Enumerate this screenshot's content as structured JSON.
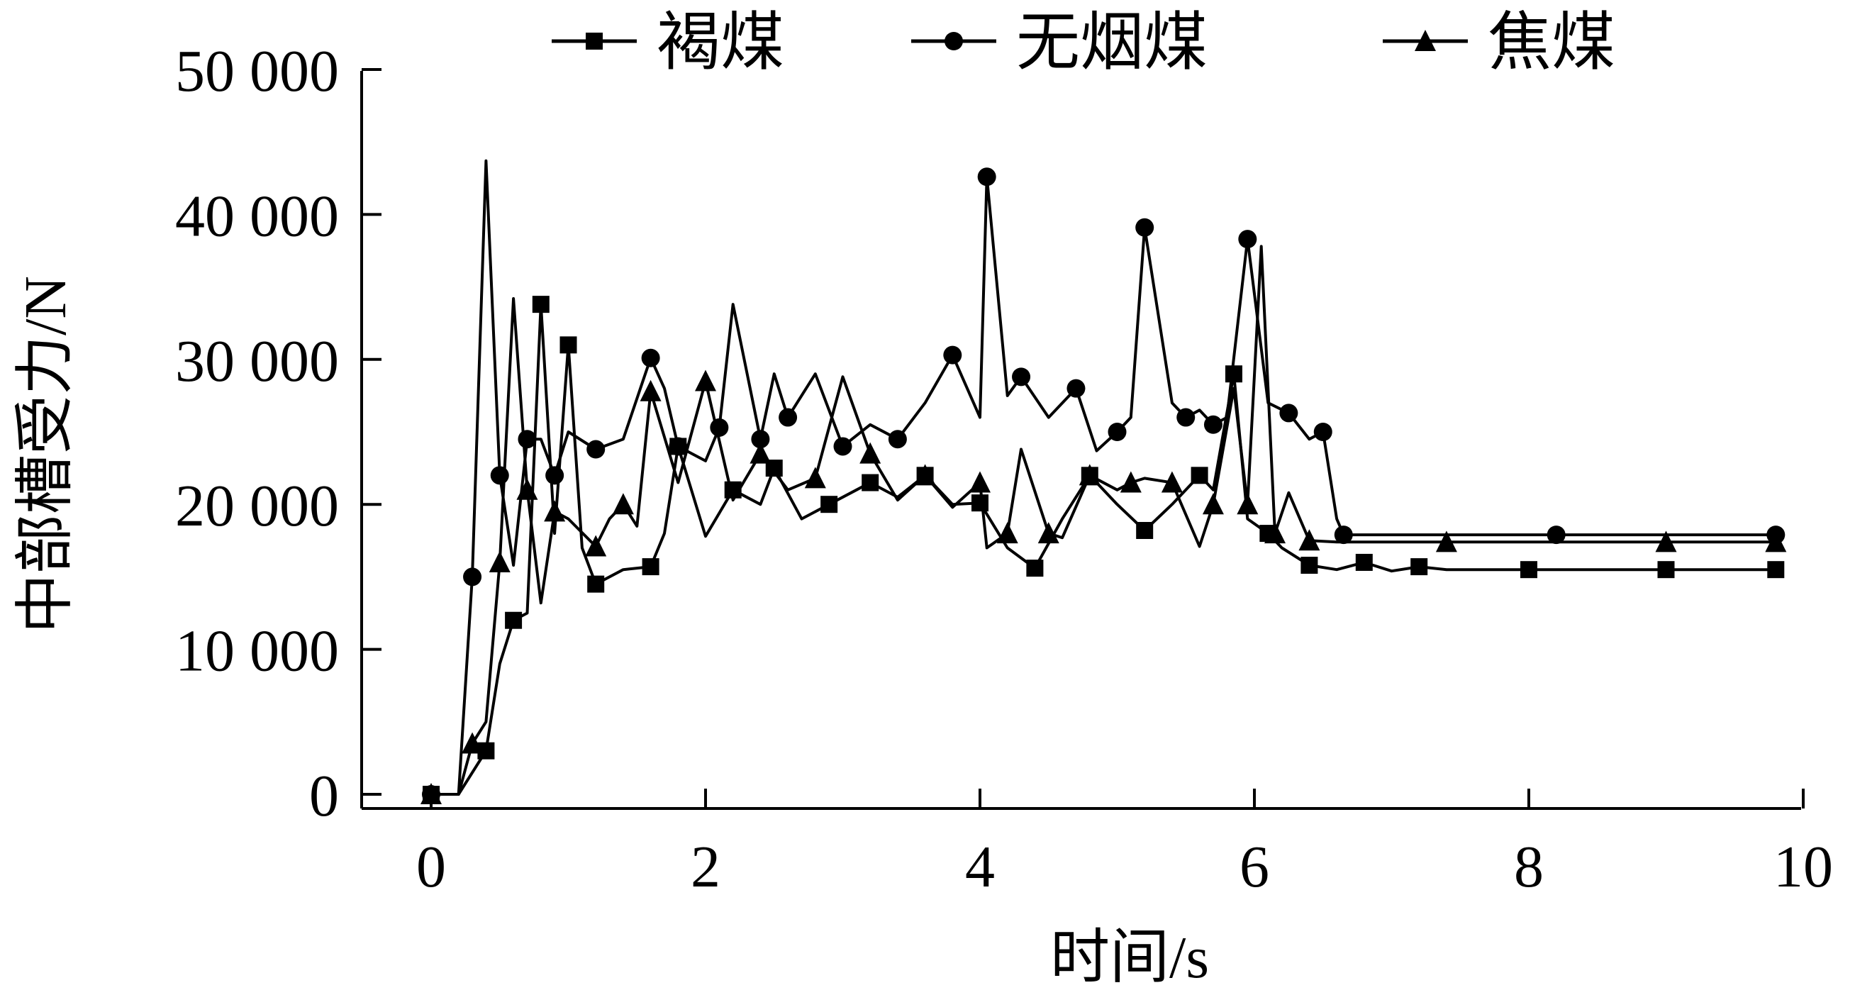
{
  "chart_data": {
    "type": "line",
    "xlabel": "时间/s",
    "ylabel": "中部槽受力/N",
    "xlim": [
      0,
      10
    ],
    "ylim": [
      0,
      50000
    ],
    "x_ticks": [
      0,
      2,
      4,
      6,
      8,
      10
    ],
    "y_ticks": [
      0,
      10000,
      20000,
      30000,
      40000,
      50000
    ],
    "x_tick_labels": [
      "0",
      "2",
      "4",
      "6",
      "8",
      "10"
    ],
    "y_tick_labels": [
      "0",
      "10 000",
      "20 000",
      "30 000",
      "40 000",
      "50 000"
    ],
    "legend_position": "top",
    "grid": false,
    "series": [
      {
        "name": "褐煤",
        "marker": "square",
        "points": [
          [
            0,
            0
          ],
          [
            0.2,
            0
          ],
          [
            0.4,
            3000
          ],
          [
            0.5,
            9000
          ],
          [
            0.6,
            12000
          ],
          [
            0.7,
            12500
          ],
          [
            0.8,
            33800
          ],
          [
            0.9,
            18000
          ],
          [
            1.0,
            31000
          ],
          [
            1.1,
            17000
          ],
          [
            1.2,
            14500
          ],
          [
            1.4,
            15500
          ],
          [
            1.6,
            15700
          ],
          [
            1.7,
            18000
          ],
          [
            1.8,
            24000
          ],
          [
            2.0,
            17800
          ],
          [
            2.2,
            21000
          ],
          [
            2.4,
            20000
          ],
          [
            2.5,
            22500
          ],
          [
            2.7,
            19000
          ],
          [
            2.9,
            20000
          ],
          [
            3.1,
            21000
          ],
          [
            3.2,
            21500
          ],
          [
            3.4,
            20500
          ],
          [
            3.6,
            22000
          ],
          [
            3.8,
            20000
          ],
          [
            4.0,
            20100
          ],
          [
            4.2,
            17000
          ],
          [
            4.4,
            15600
          ],
          [
            4.6,
            19000
          ],
          [
            4.8,
            22000
          ],
          [
            5.0,
            20000
          ],
          [
            5.2,
            18200
          ],
          [
            5.4,
            20000
          ],
          [
            5.6,
            22000
          ],
          [
            5.7,
            21000
          ],
          [
            5.85,
            29000
          ],
          [
            5.95,
            19000
          ],
          [
            6.1,
            18000
          ],
          [
            6.2,
            17000
          ],
          [
            6.4,
            15800
          ],
          [
            6.6,
            15500
          ],
          [
            6.8,
            16000
          ],
          [
            7.0,
            15400
          ],
          [
            7.2,
            15700
          ],
          [
            7.4,
            15500
          ],
          [
            8.0,
            15500
          ],
          [
            8.2,
            15500
          ],
          [
            9.0,
            15500
          ],
          [
            9.8,
            15500
          ]
        ]
      },
      {
        "name": "无烟煤",
        "marker": "circle",
        "points": [
          [
            0,
            0
          ],
          [
            0.2,
            0
          ],
          [
            0.3,
            15000
          ],
          [
            0.4,
            43700
          ],
          [
            0.5,
            22000
          ],
          [
            0.6,
            15800
          ],
          [
            0.7,
            24500
          ],
          [
            0.8,
            24500
          ],
          [
            0.9,
            22000
          ],
          [
            1.0,
            25000
          ],
          [
            1.2,
            23800
          ],
          [
            1.4,
            24500
          ],
          [
            1.6,
            30100
          ],
          [
            1.7,
            28000
          ],
          [
            1.8,
            24000
          ],
          [
            2.0,
            23000
          ],
          [
            2.1,
            25300
          ],
          [
            2.2,
            33800
          ],
          [
            2.4,
            24500
          ],
          [
            2.5,
            29000
          ],
          [
            2.6,
            26000
          ],
          [
            2.8,
            29000
          ],
          [
            3.0,
            24000
          ],
          [
            3.2,
            25500
          ],
          [
            3.4,
            24500
          ],
          [
            3.6,
            27000
          ],
          [
            3.8,
            30300
          ],
          [
            4.0,
            26000
          ],
          [
            4.05,
            42600
          ],
          [
            4.2,
            27500
          ],
          [
            4.3,
            28800
          ],
          [
            4.5,
            26000
          ],
          [
            4.7,
            28000
          ],
          [
            4.85,
            23700
          ],
          [
            5.0,
            25000
          ],
          [
            5.1,
            26000
          ],
          [
            5.2,
            39100
          ],
          [
            5.4,
            27000
          ],
          [
            5.5,
            26000
          ],
          [
            5.6,
            26500
          ],
          [
            5.7,
            25500
          ],
          [
            5.8,
            26000
          ],
          [
            5.95,
            38300
          ],
          [
            6.1,
            27000
          ],
          [
            6.25,
            26300
          ],
          [
            6.4,
            24500
          ],
          [
            6.5,
            25000
          ],
          [
            6.6,
            19000
          ],
          [
            6.65,
            17900
          ],
          [
            7.4,
            17900
          ],
          [
            8.2,
            17900
          ],
          [
            9.0,
            17900
          ],
          [
            9.8,
            17900
          ]
        ]
      },
      {
        "name": "焦煤",
        "marker": "triangle",
        "points": [
          [
            0,
            0
          ],
          [
            0.2,
            0
          ],
          [
            0.3,
            3500
          ],
          [
            0.4,
            5000
          ],
          [
            0.5,
            16000
          ],
          [
            0.6,
            34200
          ],
          [
            0.7,
            21000
          ],
          [
            0.8,
            13200
          ],
          [
            0.9,
            19500
          ],
          [
            1.0,
            19000
          ],
          [
            1.2,
            17100
          ],
          [
            1.3,
            19000
          ],
          [
            1.4,
            20000
          ],
          [
            1.5,
            18500
          ],
          [
            1.6,
            27800
          ],
          [
            1.8,
            21500
          ],
          [
            2.0,
            28500
          ],
          [
            2.2,
            20300
          ],
          [
            2.4,
            23500
          ],
          [
            2.6,
            21000
          ],
          [
            2.8,
            21800
          ],
          [
            3.0,
            28800
          ],
          [
            3.2,
            23500
          ],
          [
            3.4,
            20300
          ],
          [
            3.6,
            22000
          ],
          [
            3.8,
            19800
          ],
          [
            4.0,
            21500
          ],
          [
            4.05,
            17000
          ],
          [
            4.2,
            18000
          ],
          [
            4.3,
            23800
          ],
          [
            4.5,
            18000
          ],
          [
            4.6,
            17700
          ],
          [
            4.8,
            22000
          ],
          [
            5.0,
            21000
          ],
          [
            5.1,
            21500
          ],
          [
            5.2,
            21800
          ],
          [
            5.4,
            21500
          ],
          [
            5.6,
            17100
          ],
          [
            5.7,
            20000
          ],
          [
            5.85,
            28000
          ],
          [
            5.95,
            20000
          ],
          [
            6.05,
            37800
          ],
          [
            6.15,
            18000
          ],
          [
            6.25,
            20800
          ],
          [
            6.4,
            17500
          ],
          [
            6.6,
            17400
          ],
          [
            7.4,
            17400
          ],
          [
            8.2,
            17400
          ],
          [
            9.0,
            17400
          ],
          [
            9.8,
            17400
          ]
        ]
      }
    ]
  }
}
